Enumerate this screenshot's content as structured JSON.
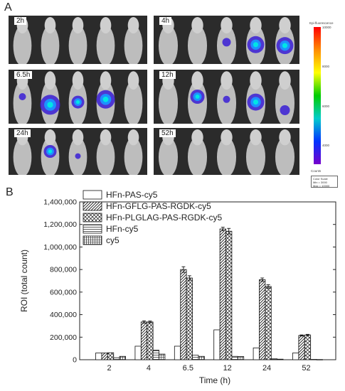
{
  "panel_a": {
    "letter": "A",
    "time_points": [
      "2h",
      "4h",
      "6.5h",
      "12h",
      "24h",
      "52h"
    ],
    "colorbar": {
      "title": "Epi-fluorescence",
      "ticks": [
        "10000",
        "8000",
        "6000",
        "4000"
      ],
      "counts_label": "Counts",
      "scale_lines": [
        "Color Scale",
        "Min = 3000",
        "Max = 10000"
      ],
      "colors": [
        "#ff0000",
        "#ff8c00",
        "#ffff00",
        "#00cc00",
        "#00cccc",
        "#0033ff",
        "#7700cc"
      ]
    }
  },
  "panel_b": {
    "letter": "B"
  },
  "chart_data": {
    "type": "bar",
    "categories": [
      "2",
      "4",
      "6.5",
      "12",
      "24",
      "52"
    ],
    "xlabel": "Time (h)",
    "ylabel": "ROI (total count)",
    "ylim": [
      0,
      1400000
    ],
    "yticks": [
      "0",
      "200,000",
      "400,000",
      "600,000",
      "800,000",
      "1,000,000",
      "1,200,000",
      "1,400,000"
    ],
    "legend_position": "top-left",
    "series": [
      {
        "name": "HFn-PAS-cy5",
        "pattern": "blank",
        "values": [
          60000,
          120000,
          120000,
          265000,
          105000,
          60000
        ],
        "errors": [
          0,
          0,
          0,
          0,
          0,
          0
        ]
      },
      {
        "name": "HFn-GFLG-PAS-RGDK-cy5",
        "pattern": "diagonal",
        "values": [
          60000,
          335000,
          800000,
          1160000,
          710000,
          215000
        ],
        "errors": [
          0,
          10000,
          25000,
          15000,
          15000,
          5000
        ]
      },
      {
        "name": "HFn-PLGLAG-PAS-RGDK-cy5",
        "pattern": "crosshatch",
        "values": [
          62000,
          335000,
          725000,
          1140000,
          650000,
          220000
        ],
        "errors": [
          0,
          8000,
          20000,
          25000,
          15000,
          5000
        ]
      },
      {
        "name": "HFn-cy5",
        "pattern": "hlines",
        "values": [
          18000,
          85000,
          40000,
          30000,
          8000,
          3000
        ],
        "errors": [
          0,
          0,
          0,
          0,
          0,
          0
        ]
      },
      {
        "name": "cy5",
        "pattern": "grid",
        "values": [
          30000,
          50000,
          30000,
          28000,
          5000,
          2000
        ],
        "errors": [
          0,
          0,
          0,
          0,
          0,
          0
        ]
      }
    ]
  }
}
